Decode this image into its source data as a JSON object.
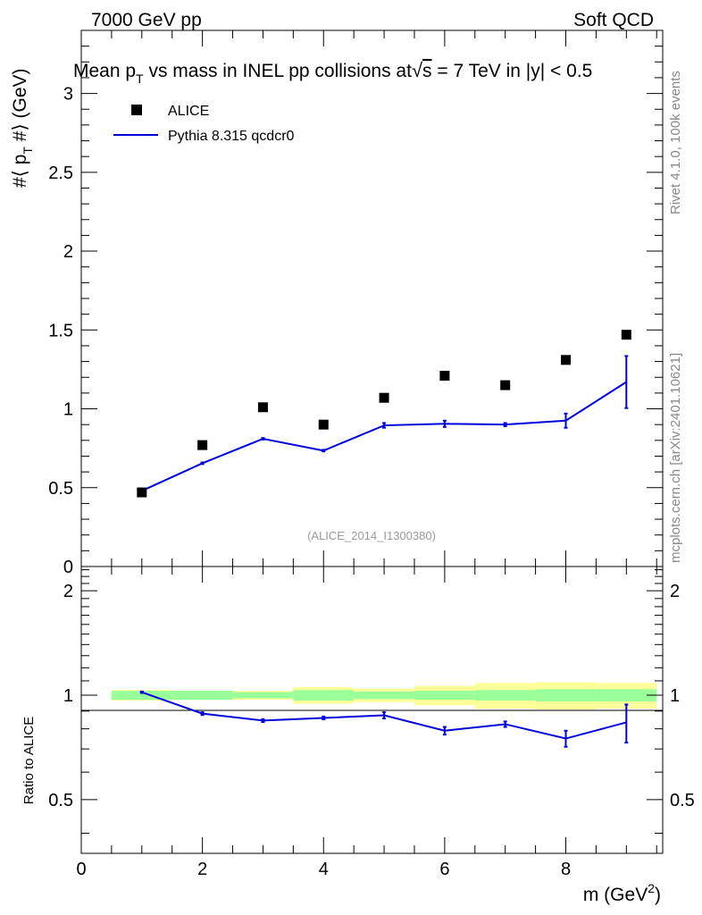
{
  "header": {
    "left": "7000 GeV pp",
    "right": "Soft QCD"
  },
  "side_labels": {
    "rivet": "Rivet 4.1.0,  100k events",
    "mcplots": "mcplots.cern.ch [arXiv:2401.10621]"
  },
  "colors": {
    "data": "#000000",
    "mc": "#0000dd",
    "band_inner": "#99ff99",
    "band_outer": "#ffff99"
  },
  "chart_data": [
    {
      "type": "scatter",
      "title": "Mean pT vs mass in INEL pp collisions at √s = 7 TeV in |y| < 0.5",
      "title_parts": {
        "mean": "Mean p",
        "sub": "T",
        "rest": " vs mass in INEL pp collisions at",
        "sqrt": "√",
        "s": "s",
        "rest2": " =  7 TeV in |y| < 0.5"
      },
      "ylabel": "#⟨ p_T #⟩ (GeV)",
      "ylabel_parts": {
        "pre": "#⟨ p",
        "sub": "T",
        "post": " #⟩ (GeV)"
      },
      "watermark": "(ALICE_2014_I1300380)",
      "xlim": [
        0,
        9.6
      ],
      "ylim": [
        0,
        3.4
      ],
      "yticks": [
        0,
        0.5,
        1,
        1.5,
        2,
        2.5,
        3
      ],
      "ytick_labels": [
        "0",
        "0.5",
        "1",
        "1.5",
        "2",
        "2.5",
        "3"
      ],
      "legend": {
        "data": "ALICE",
        "mc": "Pythia 8.315 qcdcr0",
        "position": "top-left"
      },
      "series": [
        {
          "name": "ALICE",
          "kind": "markers",
          "x": [
            1,
            2,
            3,
            4,
            5,
            6,
            7,
            8,
            9
          ],
          "y": [
            0.47,
            0.77,
            1.01,
            0.9,
            1.07,
            1.21,
            1.15,
            1.31,
            1.47
          ],
          "yerr": [
            0.015,
            0.02,
            0.02,
            0.03,
            0.025,
            0.03,
            0.04,
            0.05,
            0.06
          ]
        },
        {
          "name": "Pythia 8.315 qcdcr0",
          "kind": "line",
          "x": [
            1,
            2,
            3,
            4,
            5,
            6,
            7,
            8,
            9
          ],
          "y": [
            0.48,
            0.655,
            0.81,
            0.735,
            0.895,
            0.905,
            0.9,
            0.925,
            1.17
          ],
          "yerr": [
            0.005,
            0.005,
            0.005,
            0.005,
            0.015,
            0.02,
            0.01,
            0.045,
            0.165
          ]
        }
      ]
    },
    {
      "type": "line",
      "title": "Ratio to ALICE",
      "ylabel": "Ratio to ALICE",
      "xlabel": "m (GeV²)",
      "xlabel_parts": {
        "text": "m (GeV",
        "sup": "2",
        "close": ")"
      },
      "xlim": [
        0,
        9.6
      ],
      "ylim": [
        0.35,
        2.35
      ],
      "xticks": [
        0,
        2,
        4,
        6,
        8
      ],
      "xtick_labels": [
        "0",
        "2",
        "4",
        "6",
        "8"
      ],
      "yticks": [
        0.5,
        1,
        2
      ],
      "ytick_labels": [
        "0.5",
        "1",
        "2"
      ],
      "bands": {
        "x_edges": [
          0.5,
          1.5,
          2.5,
          3.5,
          4.5,
          5.5,
          6.5,
          7.5,
          8.5,
          9.5
        ],
        "inner": [
          0.03,
          0.03,
          0.02,
          0.035,
          0.025,
          0.03,
          0.035,
          0.04,
          0.04
        ],
        "outer": [
          0.035,
          0.03,
          0.03,
          0.055,
          0.045,
          0.065,
          0.085,
          0.09,
          0.085
        ]
      },
      "series": [
        {
          "name": "Pythia 8.315 qcdcr0 / ALICE",
          "x": [
            1,
            2,
            3,
            4,
            5,
            6,
            7,
            8,
            9
          ],
          "y": [
            1.02,
            0.885,
            0.845,
            0.86,
            0.875,
            0.79,
            0.825,
            0.75,
            0.835
          ],
          "yerr": [
            0.005,
            0.008,
            0.008,
            0.008,
            0.018,
            0.02,
            0.015,
            0.04,
            0.105
          ]
        }
      ]
    }
  ]
}
